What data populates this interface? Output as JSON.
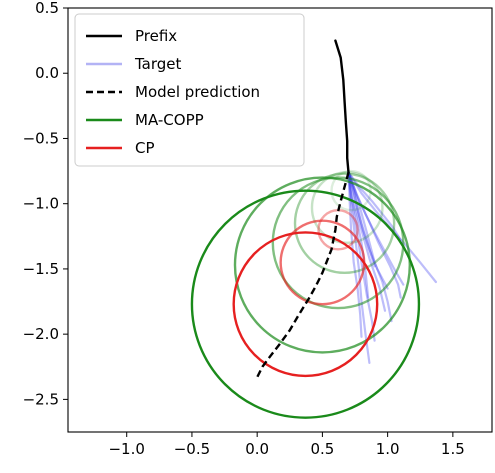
{
  "chart_data": {
    "type": "line",
    "title": "",
    "xlabel": "",
    "ylabel": "",
    "xlim": [
      -1.45,
      1.8
    ],
    "ylim": [
      -2.75,
      0.5
    ],
    "x_ticks": [
      -1.0,
      -0.5,
      0.0,
      0.5,
      1.0,
      1.5
    ],
    "x_tick_labels": [
      "−1.0",
      "−0.5",
      "0.0",
      "0.5",
      "1.0",
      "1.5"
    ],
    "y_ticks": [
      0.5,
      0.0,
      -0.5,
      -1.0,
      -1.5,
      -2.0,
      -2.5
    ],
    "y_tick_labels": [
      "0.5",
      "0.0",
      "−0.5",
      "−1.0",
      "−1.5",
      "−2.0",
      "−2.5"
    ],
    "grid": false,
    "legend_position": "top-left",
    "legend": [
      {
        "label": "Prefix",
        "color": "#000000",
        "style": "solid"
      },
      {
        "label": "Target",
        "color": "#b3b3f5",
        "style": "solid"
      },
      {
        "label": "Model prediction",
        "color": "#000000",
        "style": "dashed"
      },
      {
        "label": "MA-COPP",
        "color": "#1a8a1a",
        "style": "solid"
      },
      {
        "label": "CP",
        "color": "#e62020",
        "style": "solid"
      }
    ],
    "prefix": {
      "color": "#000000",
      "points": [
        [
          0.6,
          0.25
        ],
        [
          0.64,
          0.12
        ],
        [
          0.66,
          -0.05
        ],
        [
          0.67,
          -0.22
        ],
        [
          0.68,
          -0.38
        ],
        [
          0.69,
          -0.52
        ],
        [
          0.69,
          -0.65
        ],
        [
          0.7,
          -0.76
        ]
      ]
    },
    "prediction": {
      "color": "#000000",
      "points": [
        [
          0.7,
          -0.76
        ],
        [
          0.67,
          -0.87
        ],
        [
          0.64,
          -0.98
        ],
        [
          0.61,
          -1.1
        ],
        [
          0.6,
          -1.2
        ],
        [
          0.57,
          -1.35
        ],
        [
          0.5,
          -1.53
        ],
        [
          0.45,
          -1.63
        ],
        [
          0.4,
          -1.72
        ],
        [
          0.32,
          -1.85
        ],
        [
          0.25,
          -1.97
        ],
        [
          0.17,
          -2.08
        ],
        [
          0.1,
          -2.17
        ],
        [
          0.04,
          -2.25
        ],
        [
          0.0,
          -2.33
        ]
      ]
    },
    "target_color": "#3333ee",
    "targets": [
      [
        [
          0.7,
          -0.76
        ],
        [
          0.72,
          -1.0
        ],
        [
          0.75,
          -1.25
        ],
        [
          0.78,
          -1.5
        ],
        [
          0.8,
          -1.75
        ],
        [
          0.83,
          -2.0
        ],
        [
          0.86,
          -2.22
        ]
      ],
      [
        [
          0.7,
          -0.76
        ],
        [
          0.73,
          -1.0
        ],
        [
          0.77,
          -1.25
        ],
        [
          0.8,
          -1.45
        ],
        [
          0.84,
          -1.7
        ],
        [
          0.88,
          -1.9
        ],
        [
          0.9,
          -2.05
        ]
      ],
      [
        [
          0.7,
          -0.76
        ],
        [
          0.75,
          -0.95
        ],
        [
          0.8,
          -1.15
        ],
        [
          0.86,
          -1.35
        ],
        [
          0.92,
          -1.5
        ],
        [
          1.0,
          -1.65
        ]
      ],
      [
        [
          0.7,
          -0.76
        ],
        [
          0.8,
          -0.92
        ],
        [
          0.92,
          -1.07
        ],
        [
          1.05,
          -1.22
        ],
        [
          1.15,
          -1.33
        ],
        [
          1.25,
          -1.45
        ],
        [
          1.37,
          -1.6
        ]
      ],
      [
        [
          0.7,
          -0.76
        ],
        [
          0.77,
          -0.95
        ],
        [
          0.85,
          -1.12
        ],
        [
          0.93,
          -1.3
        ],
        [
          1.02,
          -1.48
        ],
        [
          1.08,
          -1.62
        ],
        [
          1.1,
          -1.72
        ]
      ],
      [
        [
          0.7,
          -0.76
        ],
        [
          0.74,
          -0.98
        ],
        [
          0.8,
          -1.2
        ],
        [
          0.86,
          -1.42
        ],
        [
          0.94,
          -1.65
        ],
        [
          0.98,
          -1.82
        ]
      ],
      [
        [
          0.7,
          -0.76
        ],
        [
          0.71,
          -1.0
        ],
        [
          0.72,
          -1.2
        ],
        [
          0.74,
          -1.45
        ],
        [
          0.77,
          -1.65
        ],
        [
          0.79,
          -1.85
        ],
        [
          0.8,
          -2.02
        ]
      ],
      [
        [
          0.7,
          -0.76
        ],
        [
          0.76,
          -0.92
        ],
        [
          0.83,
          -1.08
        ],
        [
          0.9,
          -1.22
        ],
        [
          0.97,
          -1.35
        ],
        [
          1.05,
          -1.5
        ],
        [
          1.12,
          -1.62
        ]
      ],
      [
        [
          0.7,
          -0.76
        ],
        [
          0.79,
          -0.88
        ],
        [
          0.88,
          -0.98
        ],
        [
          0.96,
          -1.08
        ],
        [
          1.04,
          -1.18
        ],
        [
          1.1,
          -1.28
        ]
      ],
      [
        [
          0.7,
          -0.76
        ],
        [
          0.74,
          -0.9
        ],
        [
          0.77,
          -1.05
        ],
        [
          0.81,
          -1.2
        ],
        [
          0.86,
          -1.35
        ],
        [
          0.9,
          -1.48
        ]
      ],
      [
        [
          0.7,
          -0.76
        ],
        [
          0.78,
          -1.0
        ],
        [
          0.84,
          -1.22
        ],
        [
          0.9,
          -1.45
        ],
        [
          0.96,
          -1.6
        ],
        [
          1.0,
          -1.75
        ],
        [
          1.03,
          -1.9
        ]
      ],
      [
        [
          0.7,
          -0.76
        ],
        [
          0.72,
          -0.95
        ],
        [
          0.76,
          -1.1
        ],
        [
          0.8,
          -1.3
        ],
        [
          0.83,
          -1.52
        ],
        [
          0.85,
          -1.72
        ]
      ]
    ],
    "ma_copp_circles": [
      {
        "cx": 0.72,
        "cy": -0.9,
        "r": 0.15,
        "color": "#1a8a1a",
        "opacity": 0.15
      },
      {
        "cx": 0.69,
        "cy": -1.03,
        "r": 0.27,
        "color": "#1a8a1a",
        "opacity": 0.25
      },
      {
        "cx": 0.67,
        "cy": -1.15,
        "r": 0.38,
        "color": "#1a8a1a",
        "opacity": 0.4
      },
      {
        "cx": 0.62,
        "cy": -1.3,
        "r": 0.5,
        "color": "#1a8a1a",
        "opacity": 0.55
      },
      {
        "cx": 0.5,
        "cy": -1.47,
        "r": 0.67,
        "color": "#1a8a1a",
        "opacity": 0.7
      },
      {
        "cx": 0.37,
        "cy": -1.77,
        "r": 0.87,
        "color": "#1a8a1a",
        "opacity": 1.0
      }
    ],
    "cp_circles": [
      {
        "cx": 0.62,
        "cy": -1.2,
        "r": 0.15,
        "color": "#e62020",
        "opacity": 0.4
      },
      {
        "cx": 0.5,
        "cy": -1.45,
        "r": 0.32,
        "color": "#e62020",
        "opacity": 0.65
      },
      {
        "cx": 0.37,
        "cy": -1.77,
        "r": 0.55,
        "color": "#e62020",
        "opacity": 1.0
      }
    ]
  }
}
